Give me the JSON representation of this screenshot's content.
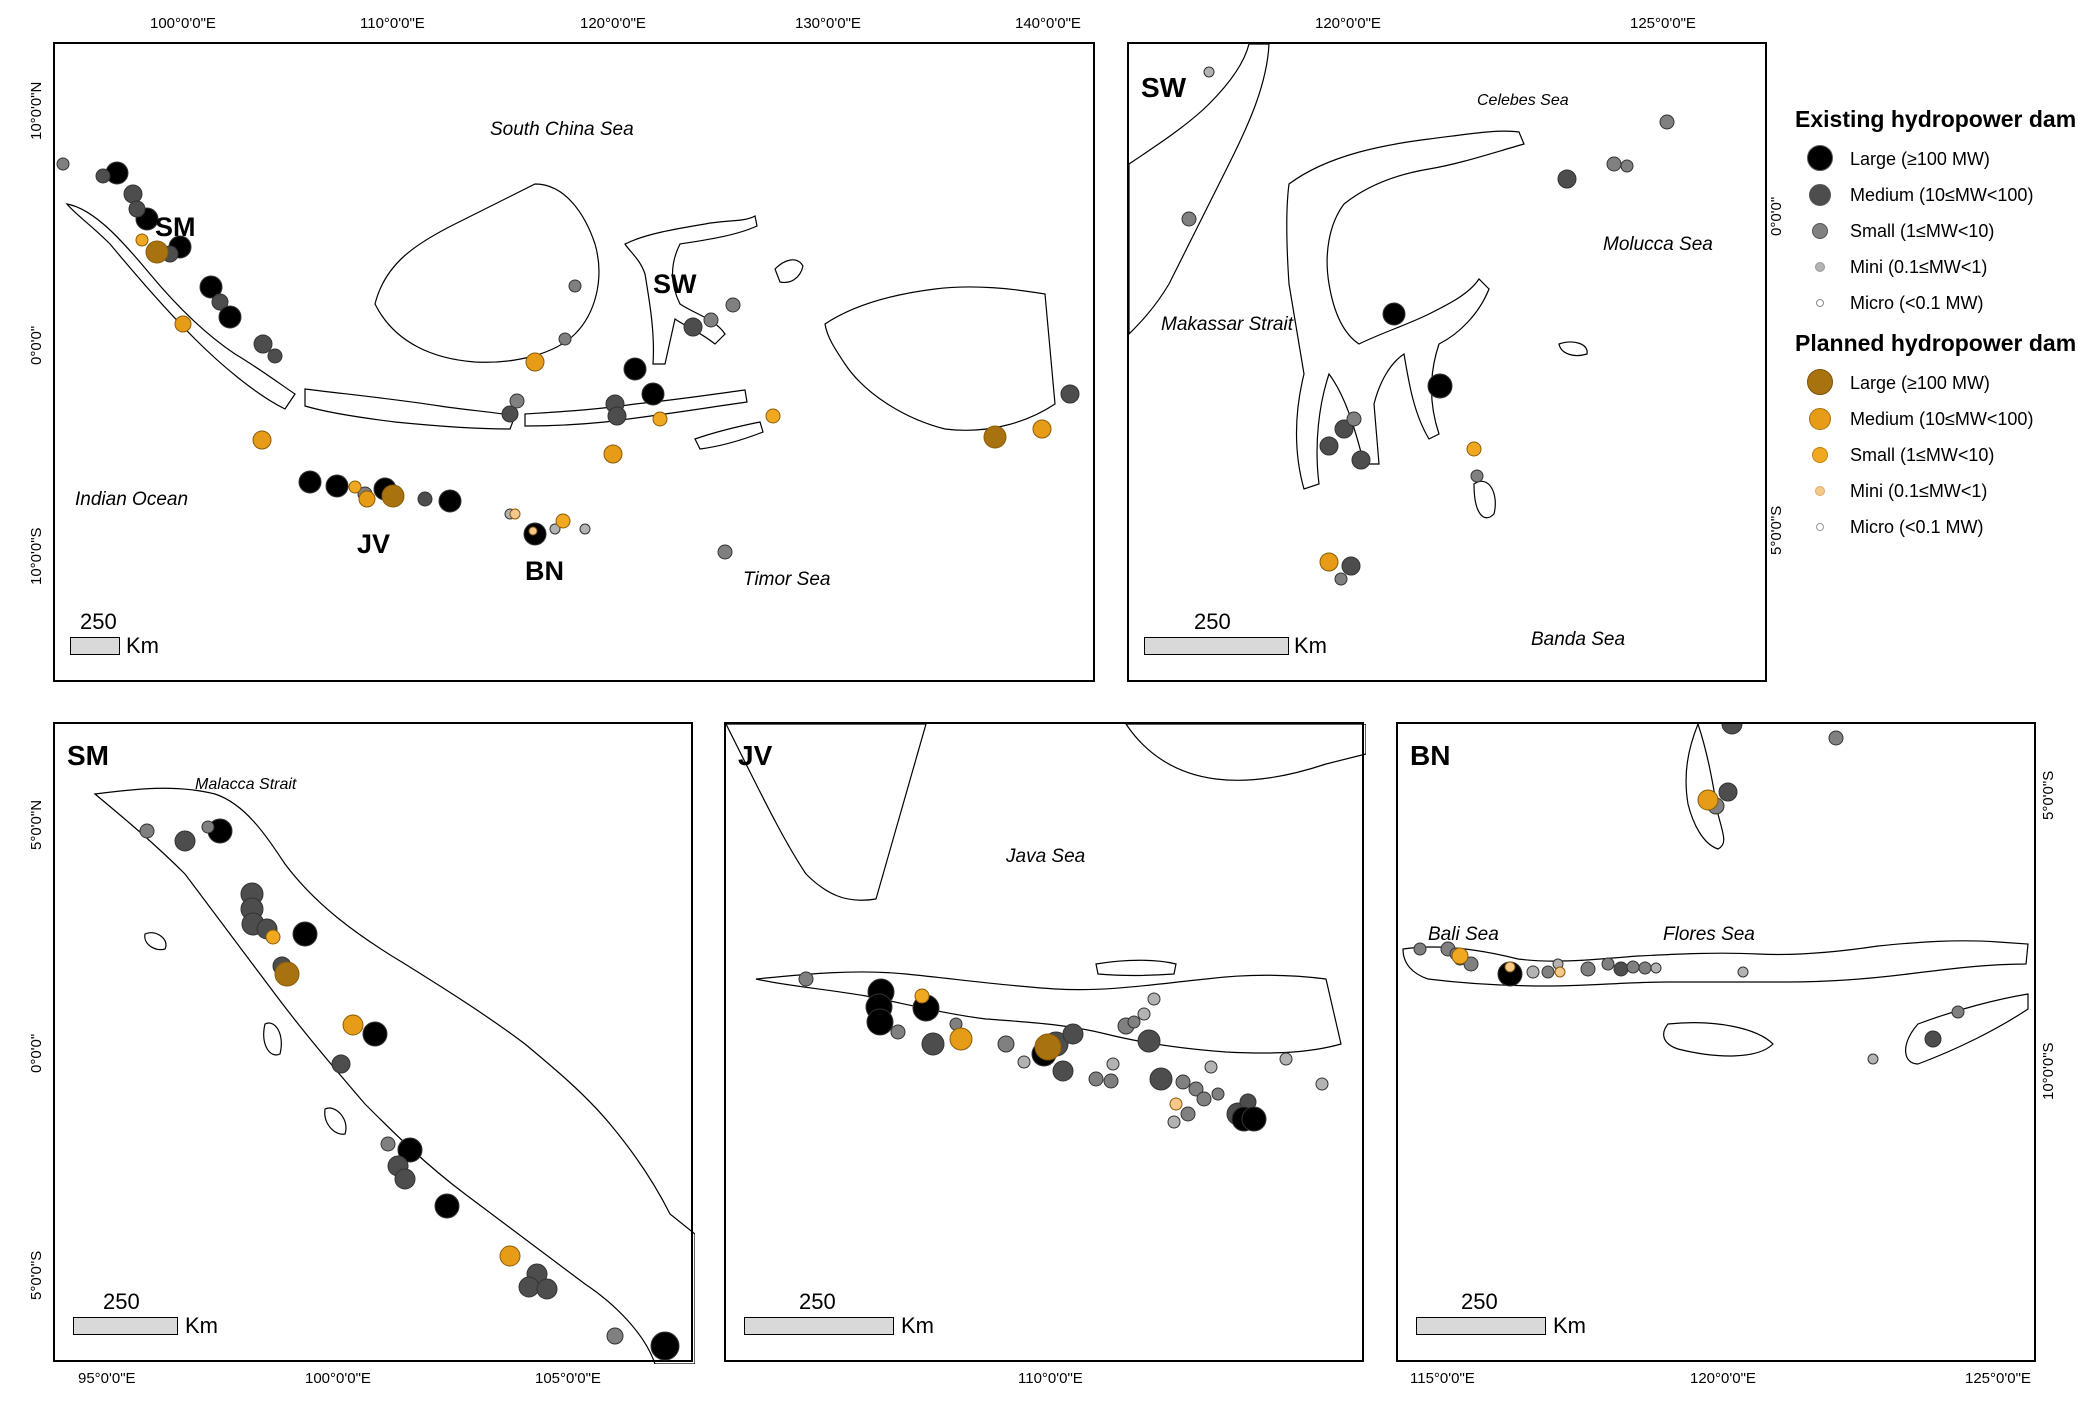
{
  "panels": {
    "overview": {
      "sea_labels": [
        "South China Sea",
        "Indian Ocean",
        "Timor Sea"
      ],
      "regions": [
        "SM",
        "SW",
        "JV",
        "BN"
      ],
      "scale": {
        "value": "250",
        "unit": "Km"
      },
      "lon_ticks": [
        "100°0'0\"E",
        "110°0'0\"E",
        "120°0'0\"E",
        "130°0'0\"E",
        "140°0'0\"E"
      ],
      "lat_ticks": [
        "10°0'0\"N",
        "0°0'0\"",
        "10°0'0\"S"
      ]
    },
    "sw": {
      "label": "SW",
      "sea_labels": [
        "Celebes Sea",
        "Molucca Sea",
        "Makassar Strait",
        "Banda Sea"
      ],
      "scale": {
        "value": "250",
        "unit": "Km"
      },
      "lon_ticks": [
        "120°0'0\"E",
        "125°0'0\"E"
      ],
      "lat_ticks": [
        "0°0'0\"",
        "5°0'0\"S"
      ]
    },
    "sm": {
      "label": "SM",
      "sea_labels": [
        "Malacca Strait"
      ],
      "scale": {
        "value": "250",
        "unit": "Km"
      },
      "lon_ticks": [
        "95°0'0\"E",
        "100°0'0\"E",
        "105°0'0\"E"
      ],
      "lat_ticks": [
        "5°0'0\"N",
        "0°0'0\"",
        "5°0'0\"S"
      ]
    },
    "jv": {
      "label": "JV",
      "sea_labels": [
        "Java Sea"
      ],
      "scale": {
        "value": "250",
        "unit": "Km"
      },
      "lon_ticks": [
        "110°0'0\"E"
      ]
    },
    "bn": {
      "label": "BN",
      "sea_labels": [
        "Bali Sea",
        "Flores Sea"
      ],
      "scale": {
        "value": "250",
        "unit": "Km"
      },
      "lon_ticks": [
        "115°0'0\"E",
        "120°0'0\"E",
        "125°0'0\"E"
      ],
      "lat_ticks": [
        "5°0'0\"S",
        "10°0'0\"S"
      ]
    }
  },
  "legend": {
    "existing_title": "Existing hydropower dam",
    "planned_title": "Planned hydropower dam",
    "existing_items": [
      {
        "label": "Large (≥100 MW)",
        "color": "#000000"
      },
      {
        "label": "Medium (10≤MW<100)",
        "color": "#4d4d4d"
      },
      {
        "label": "Small (1≤MW<10)",
        "color": "#808080"
      },
      {
        "label": "Mini (0.1≤MW<1)",
        "color": "#b3b3b3"
      },
      {
        "label": "Micro (<0.1 MW)",
        "color": "#ffffff"
      }
    ],
    "planned_items": [
      {
        "label": "Large (≥100 MW)",
        "color": "#a8730f"
      },
      {
        "label": "Medium (10≤MW<100)",
        "color": "#e69c17"
      },
      {
        "label": "Small (1≤MW<10)",
        "color": "#f0a820"
      },
      {
        "label": "Mini (0.1≤MW<1)",
        "color": "#f5c98a"
      },
      {
        "label": "Micro (<0.1 MW)",
        "color": "#ffffff"
      }
    ]
  }
}
